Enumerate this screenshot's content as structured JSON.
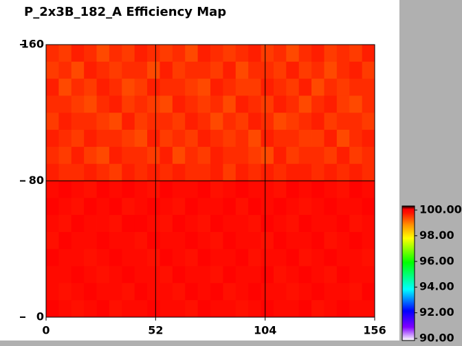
{
  "chart_data": {
    "type": "heatmap",
    "title": "P_2x3B_182_A Efficiency Map",
    "xlim": [
      0,
      156
    ],
    "xticks": [
      0,
      52,
      104,
      156
    ],
    "ylim": [
      0,
      160
    ],
    "yticks": [
      0,
      80,
      160
    ],
    "grid": true,
    "colorbar": {
      "lim": [
        90,
        100
      ],
      "ticks": [
        {
          "value": 90,
          "label": "90.00"
        },
        {
          "value": 92,
          "label": "92.00"
        },
        {
          "value": 94,
          "label": "94.00"
        },
        {
          "value": 96,
          "label": "96.00"
        },
        {
          "value": 98,
          "label": "98.00"
        },
        {
          "value": 100,
          "label": "100.00"
        }
      ]
    },
    "values": [
      [
        99.3,
        99.2,
        99.4,
        99.3,
        99.1,
        99.3,
        99.2,
        99.4,
        99.3,
        99.2,
        99.3,
        99.1,
        99.4,
        99.3,
        99.2,
        99.3,
        99.4,
        99.2,
        99.3,
        99.1,
        99.3,
        99.4,
        99.2,
        99.3,
        99.2,
        99.4
      ],
      [
        99.2,
        99.3,
        99.1,
        99.4,
        99.3,
        99.2,
        99.3,
        99.3,
        99.1,
        99.4,
        99.2,
        99.3,
        99.3,
        99.2,
        99.4,
        99.1,
        99.3,
        99.3,
        99.2,
        99.4,
        99.2,
        99.3,
        99.1,
        99.3,
        99.4,
        99.2
      ],
      [
        99.4,
        99.1,
        99.3,
        99.2,
        99.4,
        99.3,
        99.1,
        99.2,
        99.4,
        99.3,
        99.3,
        99.2,
        99.1,
        99.4,
        99.3,
        99.2,
        99.2,
        99.4,
        99.3,
        99.2,
        99.4,
        99.1,
        99.3,
        99.2,
        99.3,
        99.3
      ],
      [
        99.3,
        99.3,
        99.2,
        99.1,
        99.3,
        99.4,
        99.2,
        99.3,
        99.2,
        99.1,
        99.4,
        99.3,
        99.2,
        99.3,
        99.1,
        99.4,
        99.3,
        99.2,
        99.4,
        99.3,
        99.1,
        99.3,
        99.4,
        99.2,
        99.1,
        99.3
      ],
      [
        99.2,
        99.4,
        99.3,
        99.3,
        99.2,
        99.1,
        99.4,
        99.2,
        99.3,
        99.3,
        99.2,
        99.4,
        99.3,
        99.1,
        99.3,
        99.2,
        99.4,
        99.3,
        99.1,
        99.2,
        99.3,
        99.4,
        99.2,
        99.3,
        99.3,
        99.2
      ],
      [
        99.4,
        99.3,
        99.2,
        99.4,
        99.3,
        99.3,
        99.2,
        99.1,
        99.4,
        99.2,
        99.3,
        99.2,
        99.4,
        99.3,
        99.2,
        99.3,
        99.1,
        99.4,
        99.3,
        99.3,
        99.2,
        99.2,
        99.4,
        99.1,
        99.3,
        99.4
      ],
      [
        99.3,
        99.2,
        99.4,
        99.2,
        99.1,
        99.4,
        99.3,
        99.3,
        99.2,
        99.4,
        99.1,
        99.3,
        99.2,
        99.4,
        99.3,
        99.3,
        99.2,
        99.1,
        99.4,
        99.2,
        99.3,
        99.3,
        99.2,
        99.4,
        99.2,
        99.3
      ],
      [
        99.4,
        99.3,
        99.3,
        99.4,
        99.3,
        99.2,
        99.4,
        99.3,
        99.4,
        99.3,
        99.4,
        99.3,
        99.3,
        99.4,
        99.2,
        99.4,
        99.3,
        99.4,
        99.3,
        99.4,
        99.4,
        99.3,
        99.4,
        99.3,
        99.4,
        99.3
      ],
      [
        99.6,
        99.7,
        99.6,
        99.5,
        99.7,
        99.6,
        99.7,
        99.6,
        99.5,
        99.7,
        99.6,
        99.6,
        99.7,
        99.5,
        99.6,
        99.7,
        99.6,
        99.6,
        99.5,
        99.7,
        99.6,
        99.7,
        99.6,
        99.5,
        99.7,
        99.6
      ],
      [
        99.7,
        99.6,
        99.5,
        99.7,
        99.6,
        99.7,
        99.5,
        99.6,
        99.7,
        99.6,
        99.5,
        99.7,
        99.6,
        99.6,
        99.7,
        99.5,
        99.7,
        99.6,
        99.7,
        99.6,
        99.5,
        99.6,
        99.7,
        99.6,
        99.6,
        99.7
      ],
      [
        99.6,
        99.5,
        99.7,
        99.6,
        99.6,
        99.5,
        99.7,
        99.7,
        99.6,
        99.5,
        99.7,
        99.6,
        99.5,
        99.7,
        99.6,
        99.6,
        99.5,
        99.7,
        99.6,
        99.5,
        99.7,
        99.6,
        99.6,
        99.7,
        99.5,
        99.6
      ],
      [
        99.5,
        99.7,
        99.6,
        99.6,
        99.7,
        99.6,
        99.6,
        99.5,
        99.7,
        99.6,
        99.6,
        99.7,
        99.6,
        99.5,
        99.7,
        99.6,
        99.6,
        99.5,
        99.7,
        99.6,
        99.6,
        99.7,
        99.5,
        99.6,
        99.7,
        99.6
      ],
      [
        99.7,
        99.6,
        99.6,
        99.5,
        99.6,
        99.7,
        99.6,
        99.6,
        99.5,
        99.7,
        99.6,
        99.5,
        99.7,
        99.6,
        99.6,
        99.7,
        99.5,
        99.6,
        99.6,
        99.7,
        99.5,
        99.6,
        99.7,
        99.6,
        99.6,
        99.5
      ],
      [
        99.6,
        99.6,
        99.7,
        99.6,
        99.5,
        99.6,
        99.7,
        99.6,
        99.6,
        99.5,
        99.7,
        99.6,
        99.6,
        99.5,
        99.7,
        99.6,
        99.6,
        99.7,
        99.5,
        99.6,
        99.7,
        99.6,
        99.5,
        99.7,
        99.6,
        99.6
      ],
      [
        99.6,
        99.5,
        99.6,
        99.7,
        99.6,
        99.6,
        99.5,
        99.7,
        99.6,
        99.6,
        99.5,
        99.7,
        99.6,
        99.7,
        99.5,
        99.6,
        99.7,
        99.6,
        99.6,
        99.5,
        99.6,
        99.7,
        99.6,
        99.6,
        99.5,
        99.7
      ],
      [
        99.7,
        99.6,
        99.5,
        99.6,
        99.7,
        99.5,
        99.6,
        99.6,
        99.7,
        99.6,
        99.6,
        99.5,
        99.7,
        99.6,
        99.6,
        99.5,
        99.6,
        99.7,
        99.6,
        99.6,
        99.7,
        99.5,
        99.6,
        99.7,
        99.6,
        99.6
      ]
    ]
  }
}
